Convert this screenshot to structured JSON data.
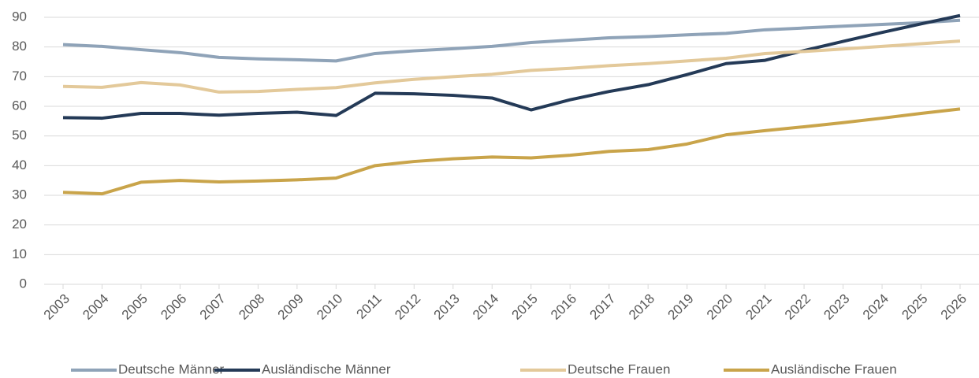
{
  "chart_data": {
    "type": "line",
    "categories": [
      "2003",
      "2004",
      "2005",
      "2006",
      "2007",
      "2008",
      "2009",
      "2010",
      "2011",
      "2012",
      "2013",
      "2014",
      "2015",
      "2016",
      "2017",
      "2018",
      "2019",
      "2020",
      "2021",
      "2022",
      "2023",
      "2024",
      "2025",
      "2026"
    ],
    "series": [
      {
        "name": "Deutsche Männer",
        "color": "#8fa3b8",
        "values": [
          80.8,
          80.2,
          79.1,
          78.1,
          76.5,
          76.0,
          75.7,
          75.3,
          77.8,
          78.7,
          79.4,
          80.2,
          81.5,
          82.3,
          83.1,
          83.5,
          84.1,
          84.6,
          85.8,
          86.4,
          87.0,
          87.6,
          88.2,
          89.0
        ]
      },
      {
        "name": "Ausländische Männer",
        "color": "#243a57",
        "values": [
          56.2,
          56.0,
          57.6,
          57.6,
          57.0,
          57.6,
          58.0,
          56.9,
          64.4,
          64.2,
          63.7,
          62.8,
          58.8,
          62.2,
          65.0,
          67.3,
          70.7,
          74.4,
          75.5,
          78.8,
          81.9,
          84.9,
          87.8,
          90.6
        ]
      },
      {
        "name": "Deutsche Frauen",
        "color": "#e3c99a",
        "values": [
          66.7,
          66.4,
          68.0,
          67.2,
          64.8,
          65.0,
          65.7,
          66.3,
          67.9,
          69.1,
          70.0,
          70.8,
          72.1,
          72.8,
          73.7,
          74.4,
          75.3,
          76.2,
          77.8,
          78.5,
          79.3,
          80.2,
          81.1,
          82.0
        ]
      },
      {
        "name": "Ausländische Frauen",
        "color": "#c9a44a",
        "values": [
          31.0,
          30.5,
          34.4,
          35.0,
          34.5,
          34.8,
          35.2,
          35.8,
          40.0,
          41.4,
          42.3,
          42.9,
          42.6,
          43.5,
          44.8,
          45.4,
          47.3,
          50.4,
          51.8,
          53.1,
          54.5,
          56.0,
          57.6,
          59.1
        ]
      }
    ],
    "ylim": [
      0,
      90
    ],
    "yticks": [
      0,
      10,
      20,
      30,
      40,
      50,
      60,
      70,
      80,
      90
    ],
    "grid": true,
    "legend": "bottom"
  }
}
